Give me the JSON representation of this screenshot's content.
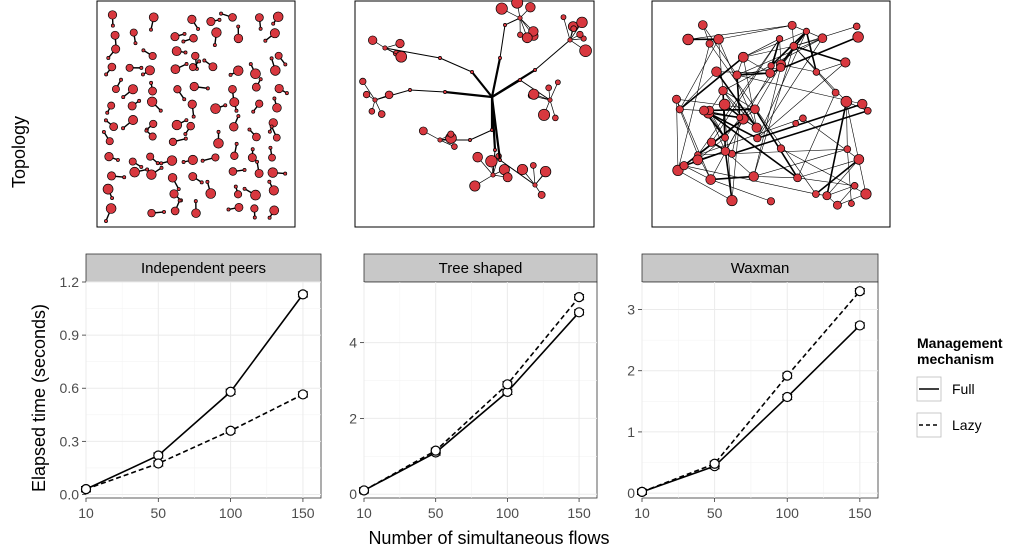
{
  "row_label": "Topology",
  "topology_panels": [
    "Independent peers",
    "Tree shaped",
    "Waxman"
  ],
  "colors": {
    "node_fill": "#d8383f",
    "node_stroke": "#000000",
    "edge": "#000000",
    "strip_bg": "#c8c8c8",
    "panel_bg": "#ffffff",
    "grid": "#ebebeb"
  },
  "legend": {
    "title_line1": "Management",
    "title_line2": "mechanism",
    "items": [
      {
        "label": "Full",
        "dash": "solid"
      },
      {
        "label": "Lazy",
        "dash": "dashed"
      }
    ]
  },
  "chart_data": [
    {
      "type": "line",
      "title": "Independent peers",
      "x": [
        10,
        50,
        100,
        150
      ],
      "xlabel": "Number of simultaneous flows",
      "ylabel": "Elapsed time (seconds)",
      "ylim": [
        -0.02,
        1.2
      ],
      "yticks": [
        0.0,
        0.3,
        0.6,
        0.9,
        1.2
      ],
      "yticklabels": [
        "0.0",
        "0.3",
        "0.6",
        "0.9",
        "1.2"
      ],
      "series": [
        {
          "name": "Full",
          "values": [
            0.03,
            0.22,
            0.58,
            1.13
          ]
        },
        {
          "name": "Lazy",
          "values": [
            0.03,
            0.175,
            0.36,
            0.565
          ]
        }
      ],
      "grid": true
    },
    {
      "type": "line",
      "title": "Tree shaped",
      "x": [
        10,
        50,
        100,
        150
      ],
      "ylim": [
        -0.1,
        5.6
      ],
      "yticks": [
        0,
        2,
        4
      ],
      "yticklabels": [
        "0",
        "2",
        "4"
      ],
      "series": [
        {
          "name": "Full",
          "values": [
            0.1,
            1.1,
            2.7,
            4.8
          ]
        },
        {
          "name": "Lazy",
          "values": [
            0.1,
            1.15,
            2.9,
            5.2
          ]
        }
      ],
      "grid": true
    },
    {
      "type": "line",
      "title": "Waxman",
      "x": [
        10,
        50,
        100,
        150
      ],
      "ylim": [
        -0.08,
        3.45
      ],
      "yticks": [
        0,
        1,
        2,
        3
      ],
      "yticklabels": [
        "0",
        "1",
        "2",
        "3"
      ],
      "series": [
        {
          "name": "Full",
          "values": [
            0.02,
            0.44,
            1.57,
            2.74
          ]
        },
        {
          "name": "Lazy",
          "values": [
            0.02,
            0.48,
            1.92,
            3.3
          ]
        }
      ],
      "grid": true
    }
  ]
}
